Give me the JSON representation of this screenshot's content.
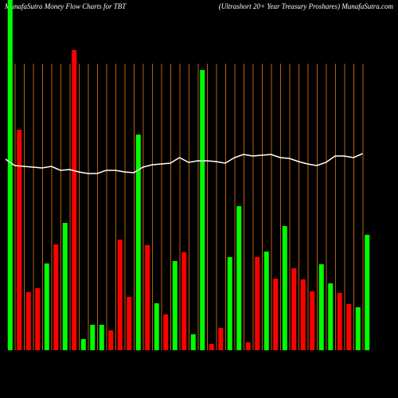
{
  "chart_data": {
    "type": "bar",
    "title": "MunafaSutra  Money Flow  Charts for TBT",
    "subtitle": "(Ultrashort 20+  Year Treasury Proshares) MunafaSutra.com",
    "categories": [
      null,
      null,
      null,
      null,
      null,
      null,
      null,
      null,
      null,
      null,
      null,
      null,
      null,
      null,
      null,
      null,
      null,
      null,
      null,
      null,
      null,
      null,
      null,
      null,
      null,
      null,
      null,
      null,
      null,
      null,
      null,
      null,
      null,
      null,
      null,
      null,
      null,
      null,
      null,
      null
    ],
    "series": [
      {
        "values": [
          440,
          277,
          73,
          78,
          109,
          133,
          160,
          377,
          14,
          32,
          32,
          25,
          139,
          67,
          271,
          132,
          59,
          45,
          112,
          123,
          20,
          352,
          8,
          28,
          117,
          181,
          10,
          117,
          124,
          90,
          156,
          103,
          89,
          74,
          108,
          84,
          72,
          58,
          54,
          145
        ],
        "colors": [
          "#00ff00",
          "#ff0000",
          "#ff0000",
          "#ff0000",
          "#00ff00",
          "#ff0000",
          "#00ff00",
          "#ff0000",
          "#00ff00",
          "#00ff00",
          "#00ff00",
          "#ff0000",
          "#ff0000",
          "#ff0000",
          "#00ff00",
          "#ff0000",
          "#00ff00",
          "#ff0000",
          "#00ff00",
          "#ff0000",
          "#00ff00",
          "#00ff00",
          "#ff0000",
          "#ff0000",
          "#00ff00",
          "#00ff00",
          "#ff0000",
          "#ff0000",
          "#00ff00",
          "#ff0000",
          "#00ff00",
          "#ff0000",
          "#ff0000",
          "#ff0000",
          "#00ff00",
          "#00ff00",
          "#ff0000",
          "#ff0000",
          "#00ff00",
          "#00ff00"
        ]
      },
      {
        "axis": "y2",
        "color": "#ffffff",
        "values": [
          240,
          232,
          231,
          230,
          229,
          231,
          226,
          227,
          224,
          222,
          222,
          226,
          226,
          224,
          223,
          230,
          233,
          234,
          235,
          242,
          236,
          238,
          238,
          237,
          235,
          242,
          246,
          244,
          245,
          246,
          242,
          241,
          237,
          234,
          232,
          236,
          244,
          244,
          242,
          247
        ]
      }
    ],
    "ylim": [
      0,
      440
    ],
    "y2lim": [
      0,
      440
    ],
    "grid": true,
    "grid_color": "#b8600b"
  }
}
